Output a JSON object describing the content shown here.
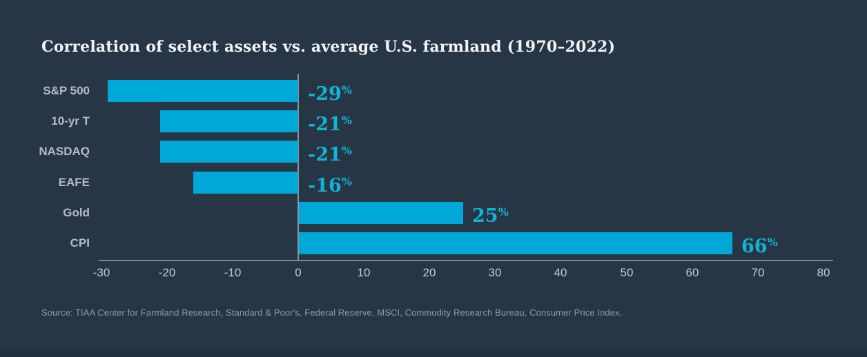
{
  "title": "Correlation of select assets vs. average U.S. farmland (1970–2022)",
  "source_note": "Source: TIAA Center for Farmland Research, Standard & Poor's, Federal Reserve, MSCI, Commodity Research Bureau, Consumer Price Index.",
  "colors": {
    "background": "#273645",
    "bottom_strip": "#20303f",
    "bar": "#00a8d8",
    "value_label": "#0fb6d8",
    "title": "#f2f3f4",
    "category_label": "#b6bcc2",
    "axis_label": "#c6cbd0",
    "axis_line": "#7d8893",
    "zero_line": "#8b949c",
    "source_text": "#8f99a3"
  },
  "chart_data": {
    "type": "bar",
    "orientation": "horizontal",
    "title": "Correlation of select assets vs. average U.S. farmland (1970–2022)",
    "categories": [
      "S&P 500",
      "10-yr T",
      "NASDAQ",
      "EAFE",
      "Gold",
      "CPI"
    ],
    "values": [
      -29,
      -21,
      -21,
      -16,
      25,
      66
    ],
    "value_suffix": "%",
    "xlabel": "",
    "ylabel": "",
    "xlim": [
      -30,
      80
    ],
    "x_ticks": [
      -30,
      -20,
      -10,
      0,
      10,
      20,
      30,
      40,
      50,
      60,
      70,
      80
    ],
    "grid": false,
    "legend": false,
    "bar_color": "#00a8d8"
  }
}
